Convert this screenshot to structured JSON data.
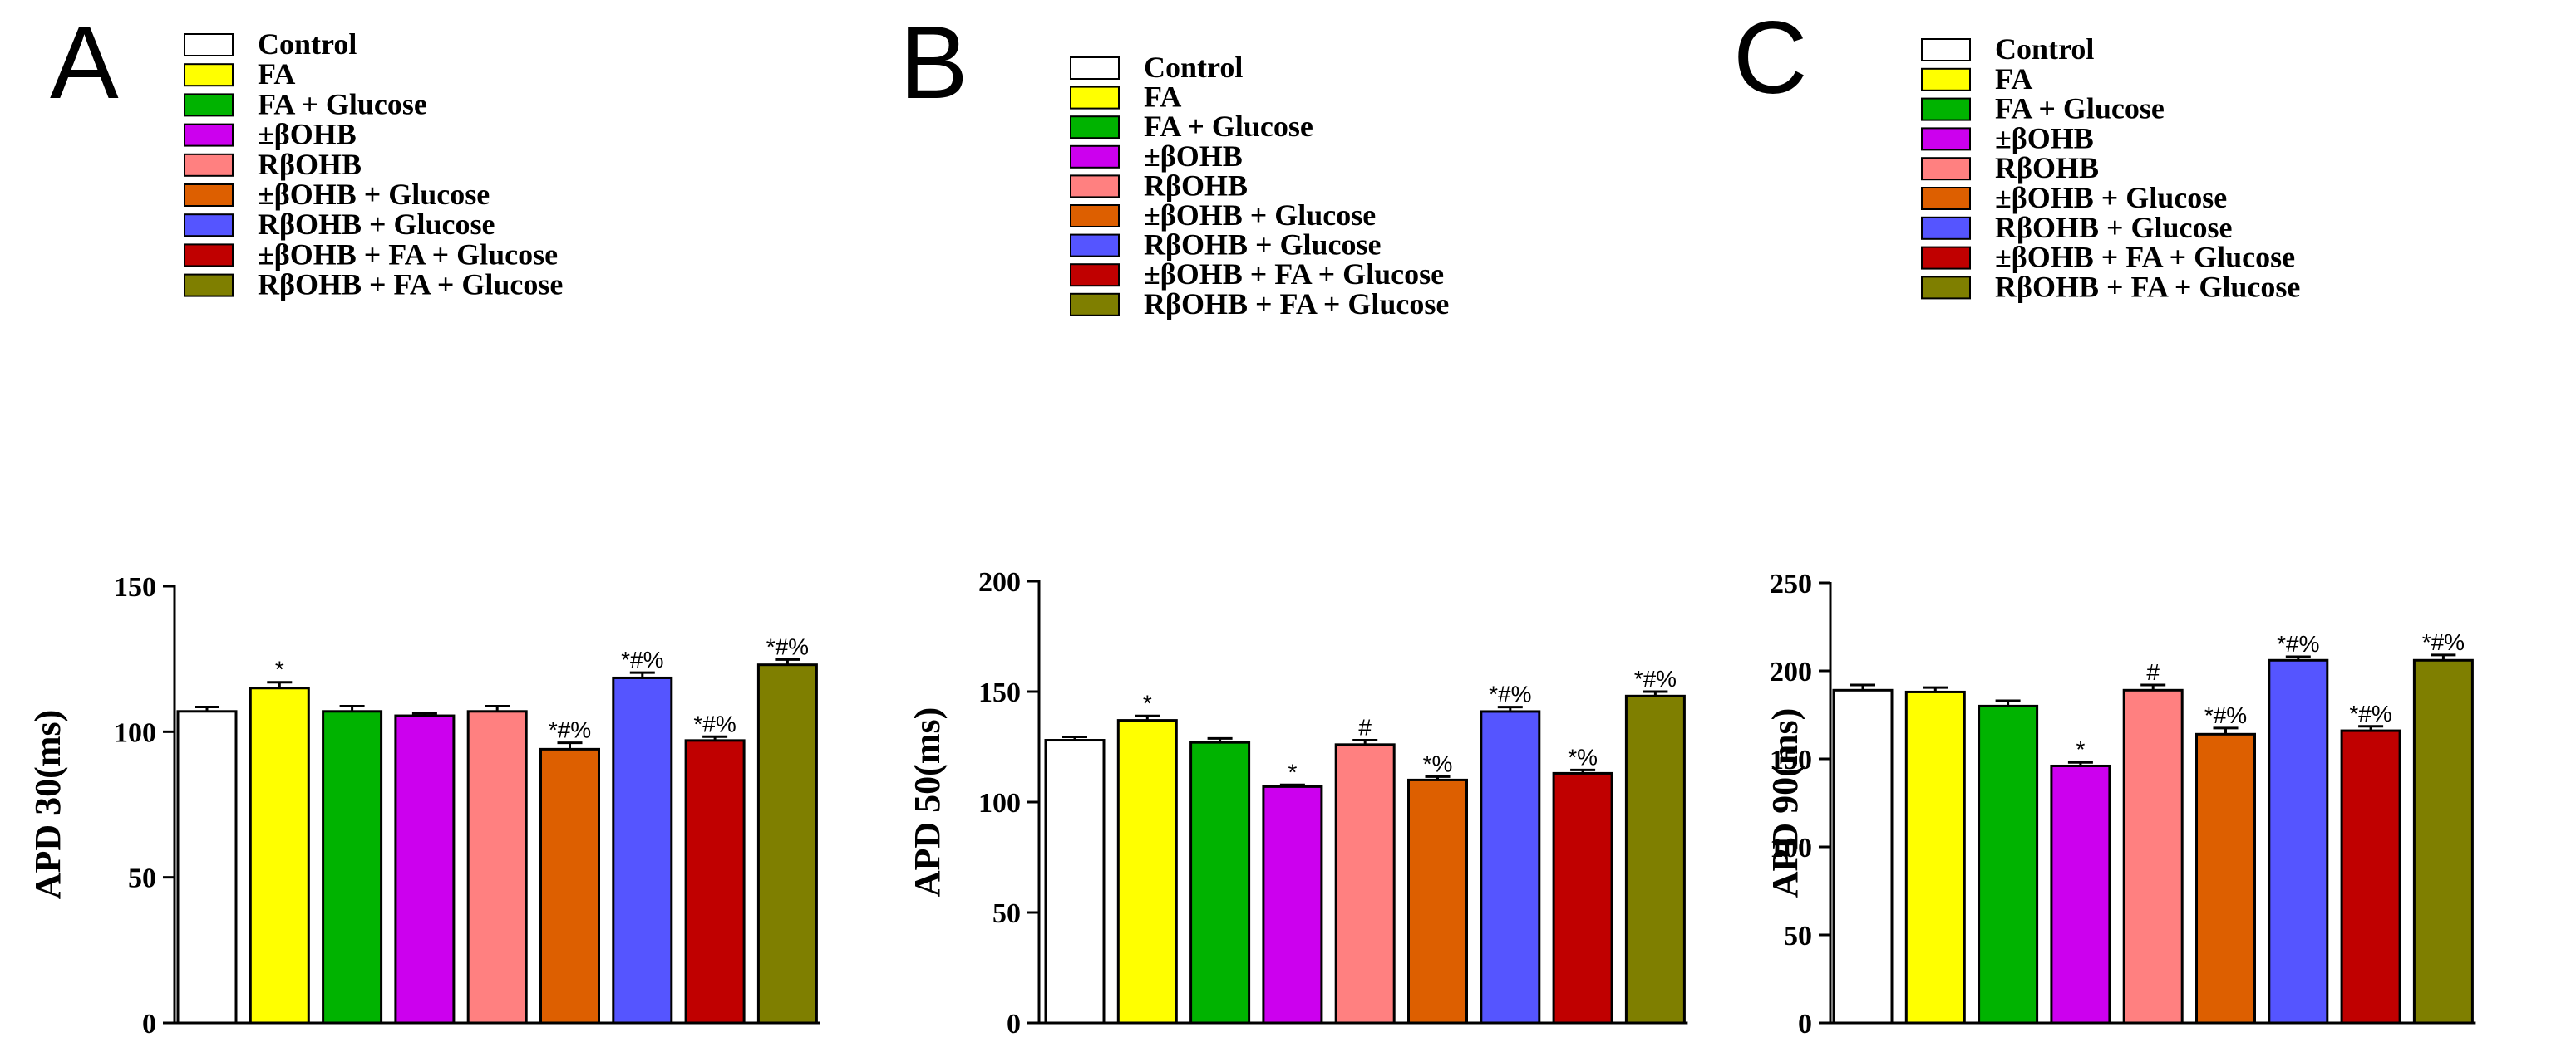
{
  "figure": {
    "groups": [
      "Control",
      "FA",
      "FA + Glucose",
      "±βOHB",
      "RβOHB",
      "±βOHB + Glucose",
      "RβOHB + Glucose",
      "±βOHB + FA + Glucose",
      "RβOHB + FA + Glucose"
    ],
    "colors": [
      "#ffffff",
      "#ffff00",
      "#00b300",
      "#cc00ee",
      "#ff8080",
      "#dd5f00",
      "#5555ff",
      "#c00000",
      "#7f7f00"
    ]
  },
  "chart_data": [
    {
      "type": "bar",
      "panel": "A",
      "title": "",
      "xlabel": "",
      "ylabel": "APD 30(ms)",
      "ylim": [
        0,
        150
      ],
      "yticks": [
        0,
        50,
        100,
        150
      ],
      "categories": [
        "Control",
        "FA",
        "FA + Glucose",
        "±βOHB",
        "RβOHB",
        "±βOHB + Glucose",
        "RβOHB + Glucose",
        "±βOHB + FA + Glucose",
        "RβOHB + FA + Glucose"
      ],
      "values": [
        107,
        115,
        107,
        105.5,
        107,
        94,
        118.5,
        97,
        123
      ],
      "errors": [
        1.5,
        2,
        1.8,
        0.8,
        1.8,
        2.2,
        1.8,
        1.3,
        1.8
      ],
      "annotations": [
        "",
        "*",
        "",
        "",
        "",
        "*#%",
        "*#%",
        "*#%",
        "*#%"
      ]
    },
    {
      "type": "bar",
      "panel": "B",
      "title": "",
      "xlabel": "",
      "ylabel": "APD 50(ms)",
      "ylim": [
        0,
        200
      ],
      "yticks": [
        0,
        50,
        100,
        150,
        200
      ],
      "categories": [
        "Control",
        "FA",
        "FA + Glucose",
        "±βOHB",
        "RβOHB",
        "±βOHB + Glucose",
        "RβOHB + Glucose",
        "±βOHB + FA + Glucose",
        "RβOHB + FA + Glucose"
      ],
      "values": [
        128,
        137,
        127,
        107,
        126,
        110,
        141,
        113,
        148
      ],
      "errors": [
        1.5,
        2,
        1.8,
        0.8,
        2,
        1.5,
        2,
        1.5,
        2
      ],
      "annotations": [
        "",
        "*",
        "",
        "*",
        "#",
        "*%",
        "*#%",
        "*%",
        "*#%"
      ]
    },
    {
      "type": "bar",
      "panel": "C",
      "title": "",
      "xlabel": "",
      "ylabel": "APD 90(ms)",
      "ylim": [
        0,
        250
      ],
      "yticks": [
        0,
        50,
        100,
        150,
        200,
        250
      ],
      "categories": [
        "Control",
        "FA",
        "FA + Glucose",
        "±βOHB",
        "RβOHB",
        "±βOHB + Glucose",
        "RβOHB + Glucose",
        "±βOHB + FA + Glucose",
        "RβOHB + FA + Glucose"
      ],
      "values": [
        189,
        188,
        180,
        146,
        189,
        164,
        206,
        166,
        206
      ],
      "errors": [
        3,
        2.5,
        3,
        2,
        3,
        3.5,
        2,
        2.5,
        3
      ],
      "annotations": [
        "",
        "",
        "",
        "*",
        "#",
        "*#%",
        "*#%",
        "*#%",
        "*#%"
      ]
    }
  ]
}
